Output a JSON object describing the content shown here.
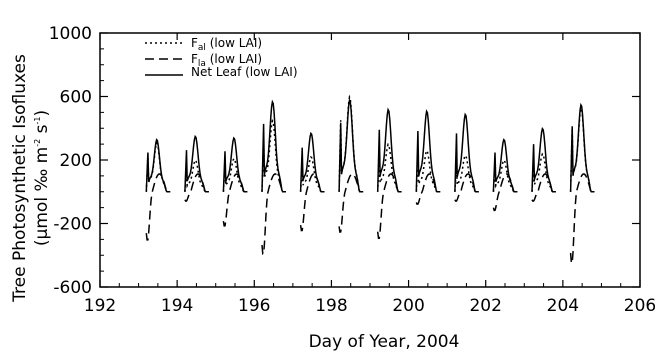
{
  "chart_data": {
    "type": "line",
    "xlabel": "Day of Year, 2004",
    "ylabel_line1": "Tree Photosynthetic Isofluxes",
    "ylabel_line2": {
      "pre": "(μmol ‰ m",
      "sup1": "-2",
      "mid": " s",
      "sup2": "-1",
      "post": ")"
    },
    "xlim": [
      192,
      206
    ],
    "ylim": [
      -600,
      1000
    ],
    "xticks": [
      192,
      194,
      196,
      198,
      200,
      202,
      204,
      206
    ],
    "yticks": [
      -600,
      -200,
      200,
      600,
      1000
    ],
    "grid": false,
    "legend_position": "top-left",
    "legend": [
      {
        "prefix": "F",
        "sub": "al",
        "suffix": " (low LAI)",
        "style": "dotted"
      },
      {
        "prefix": "F",
        "sub": "la",
        "suffix": " (low LAI)",
        "style": "dashed"
      },
      {
        "prefix": "",
        "sub": "",
        "suffix": "Net Leaf (low LAI)",
        "style": "solid"
      }
    ],
    "days": [
      {
        "start": 193.2,
        "fal": 310,
        "fla": -310,
        "net": 330
      },
      {
        "start": 194.2,
        "fal": 200,
        "fla": -60,
        "net": 350
      },
      {
        "start": 195.2,
        "fal": 210,
        "fla": -220,
        "net": 340
      },
      {
        "start": 196.2,
        "fal": 450,
        "fla": -400,
        "net": 570
      },
      {
        "start": 197.2,
        "fal": 220,
        "fla": -250,
        "net": 370
      },
      {
        "start": 198.2,
        "fal": 600,
        "fla": -260,
        "net": 580
      },
      {
        "start": 199.2,
        "fal": 300,
        "fla": -300,
        "net": 520
      },
      {
        "start": 200.2,
        "fal": 260,
        "fla": -80,
        "net": 510
      },
      {
        "start": 201.2,
        "fal": 230,
        "fla": -60,
        "net": 490
      },
      {
        "start": 202.2,
        "fal": 200,
        "fla": -120,
        "net": 330
      },
      {
        "start": 203.2,
        "fal": 240,
        "fla": -60,
        "net": 400
      },
      {
        "start": 204.2,
        "fal": 530,
        "fla": -460,
        "net": 550
      }
    ]
  }
}
